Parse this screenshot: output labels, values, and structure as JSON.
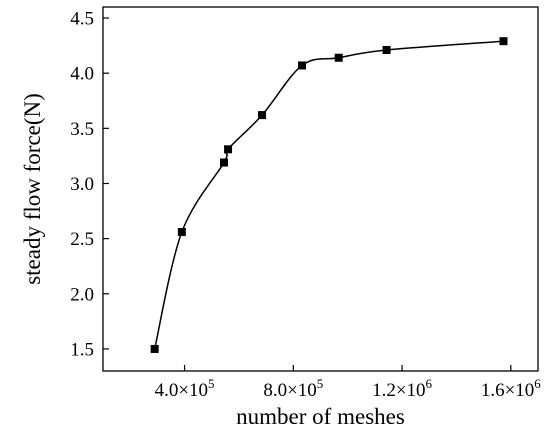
{
  "chart_data": {
    "type": "scatter",
    "title": "",
    "xlabel": "number of meshes",
    "ylabel": "steady flow force(N)",
    "xlim": [
      100000,
      1700000
    ],
    "ylim": [
      1.3,
      4.6
    ],
    "x_ticks": [
      {
        "value": 400000,
        "mantissa": "4.0×10",
        "exp": "5"
      },
      {
        "value": 800000,
        "mantissa": "8.0×10",
        "exp": "5"
      },
      {
        "value": 1200000,
        "mantissa": "1.2×10",
        "exp": "6"
      },
      {
        "value": 1600000,
        "mantissa": "1.6×10",
        "exp": "6"
      }
    ],
    "y_ticks": [
      {
        "value": 1.5,
        "label": "1.5"
      },
      {
        "value": 2.0,
        "label": "2.0"
      },
      {
        "value": 2.5,
        "label": "2.5"
      },
      {
        "value": 3.0,
        "label": "3.0"
      },
      {
        "value": 3.5,
        "label": "3.5"
      },
      {
        "value": 4.0,
        "label": "4.0"
      },
      {
        "value": 4.5,
        "label": "4.5"
      }
    ],
    "series": [
      {
        "marker": "square",
        "line": "smooth",
        "color": "#000000",
        "points": [
          {
            "x": 290000,
            "y": 1.5
          },
          {
            "x": 390000,
            "y": 2.56
          },
          {
            "x": 545000,
            "y": 3.19
          },
          {
            "x": 560000,
            "y": 3.31
          },
          {
            "x": 685000,
            "y": 3.62
          },
          {
            "x": 832000,
            "y": 4.07
          },
          {
            "x": 967000,
            "y": 4.14
          },
          {
            "x": 1143000,
            "y": 4.21
          },
          {
            "x": 1573000,
            "y": 4.29
          }
        ]
      }
    ],
    "grid": false,
    "legend": "none"
  }
}
